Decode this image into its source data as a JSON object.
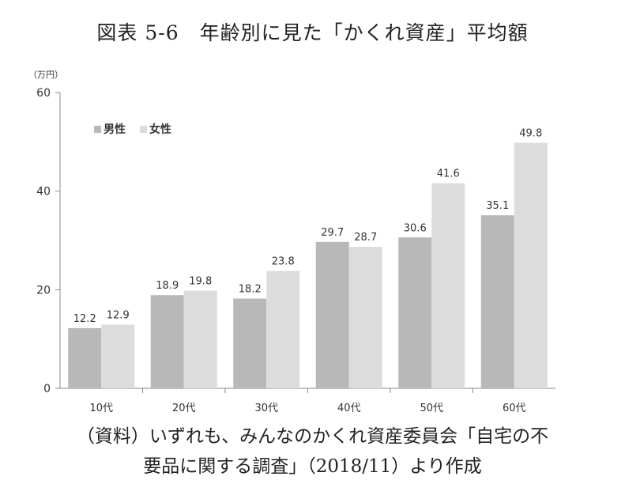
{
  "title": "図表 5-6　年齢別に見た「かくれ資産」平均額",
  "source": {
    "line1": "（資料）いずれも、みんなのかくれ資産委員会「自宅の不",
    "line2": "要品に関する調査」（2018/11）より作成"
  },
  "chart_data": {
    "type": "bar",
    "title": "",
    "xlabel": "",
    "ylabel": "（万円）",
    "ylim": [
      0,
      60
    ],
    "yticks": [
      0,
      20,
      40,
      60
    ],
    "grid": false,
    "legend_position": "top-left",
    "categories": [
      "10代",
      "20代",
      "30代",
      "40代",
      "50代",
      "60代"
    ],
    "series": [
      {
        "name": "男性",
        "color": "#b8b8b8",
        "values": [
          12.2,
          18.9,
          18.2,
          29.7,
          30.6,
          35.1
        ]
      },
      {
        "name": "女性",
        "color": "#dcdcdc",
        "values": [
          12.9,
          19.8,
          23.8,
          28.7,
          41.6,
          49.8
        ]
      }
    ]
  }
}
